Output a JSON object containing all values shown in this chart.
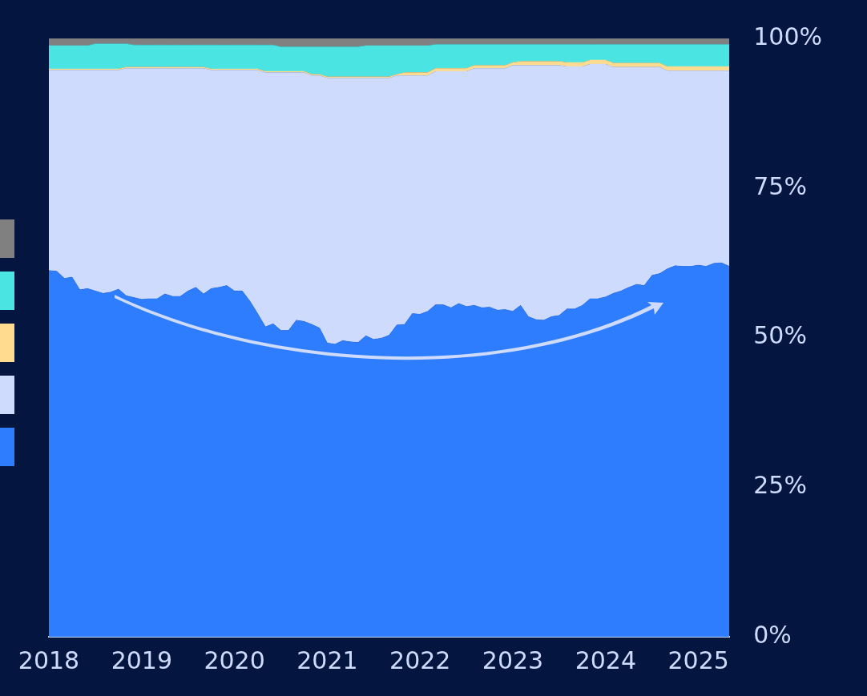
{
  "chart_data": {
    "type": "area",
    "stacked": true,
    "x": [
      "2018-01",
      "2018-02",
      "2018-03",
      "2018-04",
      "2018-05",
      "2018-06",
      "2018-07",
      "2018-08",
      "2018-09",
      "2018-10",
      "2018-11",
      "2018-12",
      "2019-01",
      "2019-02",
      "2019-03",
      "2019-04",
      "2019-05",
      "2019-06",
      "2019-07",
      "2019-08",
      "2019-09",
      "2019-10",
      "2019-11",
      "2019-12",
      "2020-01",
      "2020-02",
      "2020-03",
      "2020-04",
      "2020-05",
      "2020-06",
      "2020-07",
      "2020-08",
      "2020-09",
      "2020-10",
      "2020-11",
      "2020-12",
      "2021-01",
      "2021-02",
      "2021-03",
      "2021-04",
      "2021-05",
      "2021-06",
      "2021-07",
      "2021-08",
      "2021-09",
      "2021-10",
      "2021-11",
      "2021-12",
      "2022-01",
      "2022-02",
      "2022-03",
      "2022-04",
      "2022-05",
      "2022-06",
      "2022-07",
      "2022-08",
      "2022-09",
      "2022-10",
      "2022-11",
      "2022-12",
      "2023-01",
      "2023-02",
      "2023-03",
      "2023-04",
      "2023-05",
      "2023-06",
      "2023-07",
      "2023-08",
      "2023-09",
      "2023-10",
      "2023-11",
      "2023-12",
      "2024-01",
      "2024-02",
      "2024-03",
      "2024-04",
      "2024-05",
      "2024-06",
      "2024-07",
      "2024-08",
      "2024-09",
      "2024-10",
      "2024-11",
      "2024-12",
      "2025-01",
      "2025-02",
      "2025-03",
      "2025-04",
      "2025-05"
    ],
    "xlim": [
      "2018-01",
      "2025-05"
    ],
    "xticks": [
      "2018",
      "2019",
      "2020",
      "2021",
      "2022",
      "2023",
      "2024",
      "2025"
    ],
    "ylim": [
      0,
      100
    ],
    "yticks": [
      {
        "value": 0,
        "label": "0%"
      },
      {
        "value": 25,
        "label": "25%"
      },
      {
        "value": 50,
        "label": "50%"
      },
      {
        "value": 75,
        "label": "75%"
      },
      {
        "value": 100,
        "label": "100%"
      }
    ],
    "series": [
      {
        "color": "#2f7dff",
        "values": [
          61.2,
          61.1,
          59.9,
          60.1,
          58.0,
          58.2,
          57.8,
          57.4,
          57.6,
          58.1,
          57.0,
          56.7,
          56.4,
          56.5,
          56.5,
          57.3,
          56.9,
          56.9,
          57.8,
          58.4,
          57.3,
          58.2,
          58.4,
          58.7,
          57.8,
          57.8,
          56.1,
          54.0,
          51.8,
          52.3,
          51.2,
          51.2,
          52.9,
          52.7,
          52.2,
          51.6,
          49.1,
          48.9,
          49.5,
          49.3,
          49.2,
          50.3,
          49.7,
          49.9,
          50.4,
          52.1,
          52.2,
          54.0,
          53.9,
          54.4,
          55.5,
          55.5,
          55.0,
          55.7,
          55.2,
          55.4,
          55.0,
          55.1,
          54.6,
          54.7,
          54.4,
          55.4,
          53.5,
          53.0,
          52.9,
          53.5,
          53.7,
          54.8,
          54.8,
          55.4,
          56.5,
          56.5,
          56.8,
          57.4,
          57.8,
          58.4,
          58.9,
          58.7,
          60.4,
          60.7,
          61.5,
          62.0,
          61.9,
          61.9,
          62.1,
          61.9,
          62.4,
          62.5,
          61.9
        ]
      },
      {
        "color": "#cfdbfd",
        "values": [
          33.5,
          33.6,
          34.8,
          34.6,
          36.7,
          36.5,
          36.9,
          37.3,
          37.1,
          36.6,
          38.0,
          38.3,
          38.6,
          38.5,
          38.5,
          37.7,
          38.1,
          38.1,
          37.2,
          36.6,
          37.7,
          36.5,
          36.3,
          36.0,
          36.9,
          36.9,
          38.6,
          40.7,
          42.5,
          42.0,
          43.1,
          43.1,
          41.4,
          41.6,
          41.6,
          42.2,
          44.3,
          44.5,
          43.9,
          44.1,
          44.2,
          43.1,
          43.7,
          43.5,
          43.0,
          41.7,
          41.6,
          39.8,
          39.9,
          39.4,
          39.0,
          39.0,
          39.5,
          38.8,
          39.3,
          39.6,
          40.0,
          39.9,
          40.4,
          40.3,
          41.1,
          40.1,
          42.0,
          42.5,
          42.6,
          42.0,
          41.8,
          40.5,
          40.5,
          39.9,
          39.2,
          39.2,
          38.9,
          37.8,
          37.4,
          36.8,
          36.3,
          36.5,
          34.8,
          34.5,
          33.1,
          32.6,
          32.7,
          32.7,
          32.5,
          32.7,
          32.2,
          32.1,
          32.7
        ]
      },
      {
        "color": "#fedb8e",
        "values": [
          0.2,
          0.2,
          0.2,
          0.2,
          0.2,
          0.2,
          0.2,
          0.2,
          0.2,
          0.2,
          0.2,
          0.2,
          0.2,
          0.2,
          0.2,
          0.2,
          0.2,
          0.2,
          0.2,
          0.2,
          0.2,
          0.2,
          0.2,
          0.2,
          0.2,
          0.2,
          0.2,
          0.2,
          0.2,
          0.2,
          0.2,
          0.2,
          0.2,
          0.2,
          0.2,
          0.2,
          0.2,
          0.2,
          0.2,
          0.2,
          0.2,
          0.2,
          0.2,
          0.2,
          0.2,
          0.2,
          0.5,
          0.5,
          0.5,
          0.5,
          0.5,
          0.5,
          0.5,
          0.5,
          0.5,
          0.5,
          0.5,
          0.5,
          0.5,
          0.5,
          0.5,
          0.7,
          0.7,
          0.7,
          0.7,
          0.7,
          0.7,
          0.7,
          0.7,
          0.7,
          0.7,
          0.7,
          0.7,
          0.7,
          0.7,
          0.7,
          0.7,
          0.7,
          0.7,
          0.7,
          0.7,
          0.7,
          0.7,
          0.7,
          0.7,
          0.7,
          0.7,
          0.7,
          0.7
        ]
      },
      {
        "color": "#4ae5e3",
        "values": [
          3.9,
          3.9,
          3.9,
          3.9,
          3.9,
          3.9,
          4.2,
          4.2,
          4.2,
          4.2,
          3.9,
          3.7,
          3.7,
          3.7,
          3.7,
          3.7,
          3.7,
          3.7,
          3.7,
          3.7,
          3.7,
          4.0,
          4.0,
          4.0,
          4.0,
          4.0,
          4.0,
          4.0,
          4.4,
          4.4,
          4.1,
          4.1,
          4.1,
          4.1,
          4.6,
          4.6,
          5.0,
          5.0,
          5.0,
          5.0,
          5.0,
          5.2,
          5.2,
          5.2,
          5.2,
          4.8,
          4.5,
          4.5,
          4.5,
          4.5,
          4.0,
          4.0,
          4.0,
          4.0,
          4.0,
          3.5,
          3.5,
          3.5,
          3.5,
          3.5,
          3.0,
          2.8,
          2.8,
          2.8,
          2.8,
          2.8,
          2.8,
          3.0,
          3.0,
          3.0,
          2.6,
          2.6,
          2.6,
          3.1,
          3.1,
          3.1,
          3.1,
          3.1,
          3.1,
          3.1,
          3.7,
          3.7,
          3.7,
          3.7,
          3.7,
          3.7,
          3.7,
          3.7,
          3.7
        ]
      },
      {
        "color": "#808080",
        "values": [
          1.2,
          1.2,
          1.2,
          1.2,
          1.2,
          1.2,
          0.9,
          0.9,
          0.9,
          0.9,
          0.9,
          1.1,
          1.1,
          1.1,
          1.1,
          1.1,
          1.1,
          1.1,
          1.1,
          1.1,
          1.1,
          1.1,
          1.1,
          1.1,
          1.1,
          1.1,
          1.1,
          1.1,
          1.1,
          1.1,
          1.4,
          1.4,
          1.4,
          1.4,
          1.4,
          1.4,
          1.4,
          1.4,
          1.4,
          1.4,
          1.4,
          1.2,
          1.2,
          1.2,
          1.2,
          1.2,
          1.2,
          1.2,
          1.2,
          1.2,
          1.0,
          1.0,
          1.0,
          1.0,
          1.0,
          1.0,
          1.0,
          1.0,
          1.0,
          1.0,
          1.0,
          1.0,
          1.0,
          1.0,
          1.0,
          1.0,
          1.0,
          1.0,
          1.0,
          1.0,
          1.0,
          1.0,
          1.0,
          1.0,
          1.0,
          1.0,
          1.0,
          1.0,
          1.0,
          1.0,
          1.0,
          1.0,
          1.0,
          1.0,
          1.0,
          1.0,
          1.0,
          1.0,
          1.0
        ]
      }
    ]
  }
}
